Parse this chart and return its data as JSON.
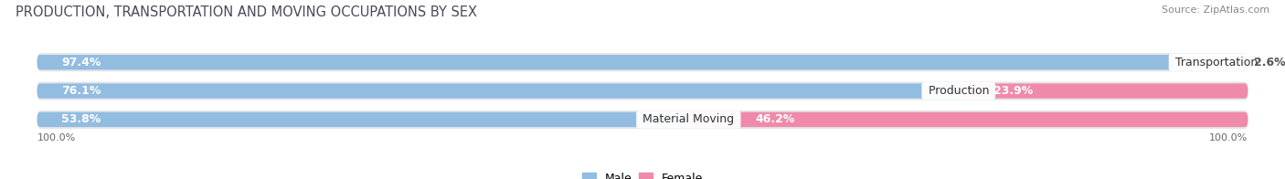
{
  "title": "PRODUCTION, TRANSPORTATION AND MOVING OCCUPATIONS BY SEX",
  "source": "Source: ZipAtlas.com",
  "categories": [
    "Transportation",
    "Production",
    "Material Moving"
  ],
  "male_pct": [
    97.4,
    76.1,
    53.8
  ],
  "female_pct": [
    2.6,
    23.9,
    46.2
  ],
  "male_color": "#92bce0",
  "female_color": "#f08aaa",
  "bg_color": "#ffffff",
  "bar_bg_color": "#e4e4e8",
  "title_fontsize": 10.5,
  "label_fontsize": 9,
  "source_fontsize": 8,
  "figsize": [
    14.06,
    1.96
  ],
  "dpi": 100,
  "legend_male": "Male",
  "legend_female": "Female",
  "axis_label": "100.0%"
}
